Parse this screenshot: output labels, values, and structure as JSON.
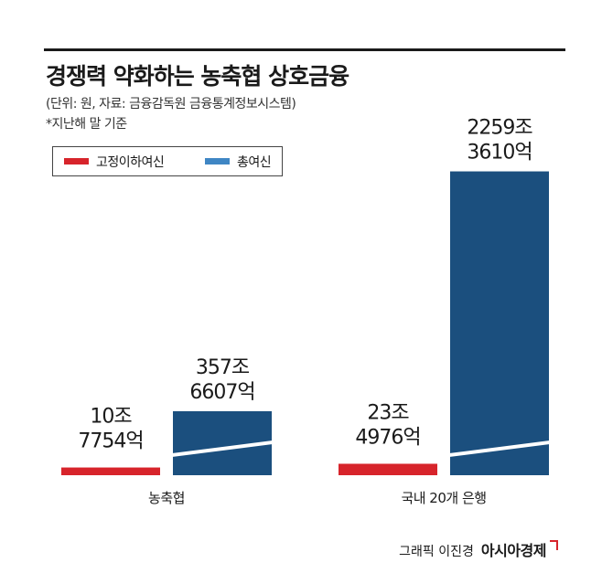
{
  "title": "경쟁력 약화하는 농축협 상호금융",
  "subtitle": "(단위: 원, 자료: 금융감독원 금융통계정보시스템)",
  "note": "*지난해 말 기준",
  "credit": {
    "graphic": "그래픽 이진경",
    "brand": "아시아경제"
  },
  "colors": {
    "fixed_loans": "#d7242b",
    "total_loans": "#1b4f7e",
    "legend_total_swatch": "#3f86c4"
  },
  "chart_data": {
    "type": "bar",
    "title": "경쟁력 약화하는 농축협 상호금융",
    "unit": "원",
    "categories": [
      "농축협",
      "국내 20개 은행"
    ],
    "series": [
      {
        "name": "고정이하여신",
        "values": [
          107754,
          234976
        ],
        "labels": [
          [
            "10조",
            "7754억"
          ],
          [
            "23조",
            "4976억"
          ]
        ]
      },
      {
        "name": "총여신",
        "values": [
          3576607,
          22593610
        ],
        "labels": [
          [
            "357조",
            "6607억"
          ],
          [
            "2259조",
            "3610억"
          ]
        ]
      }
    ],
    "value_unit": "억원",
    "axis_break": true,
    "grid": false,
    "legend_position": "top-left"
  }
}
